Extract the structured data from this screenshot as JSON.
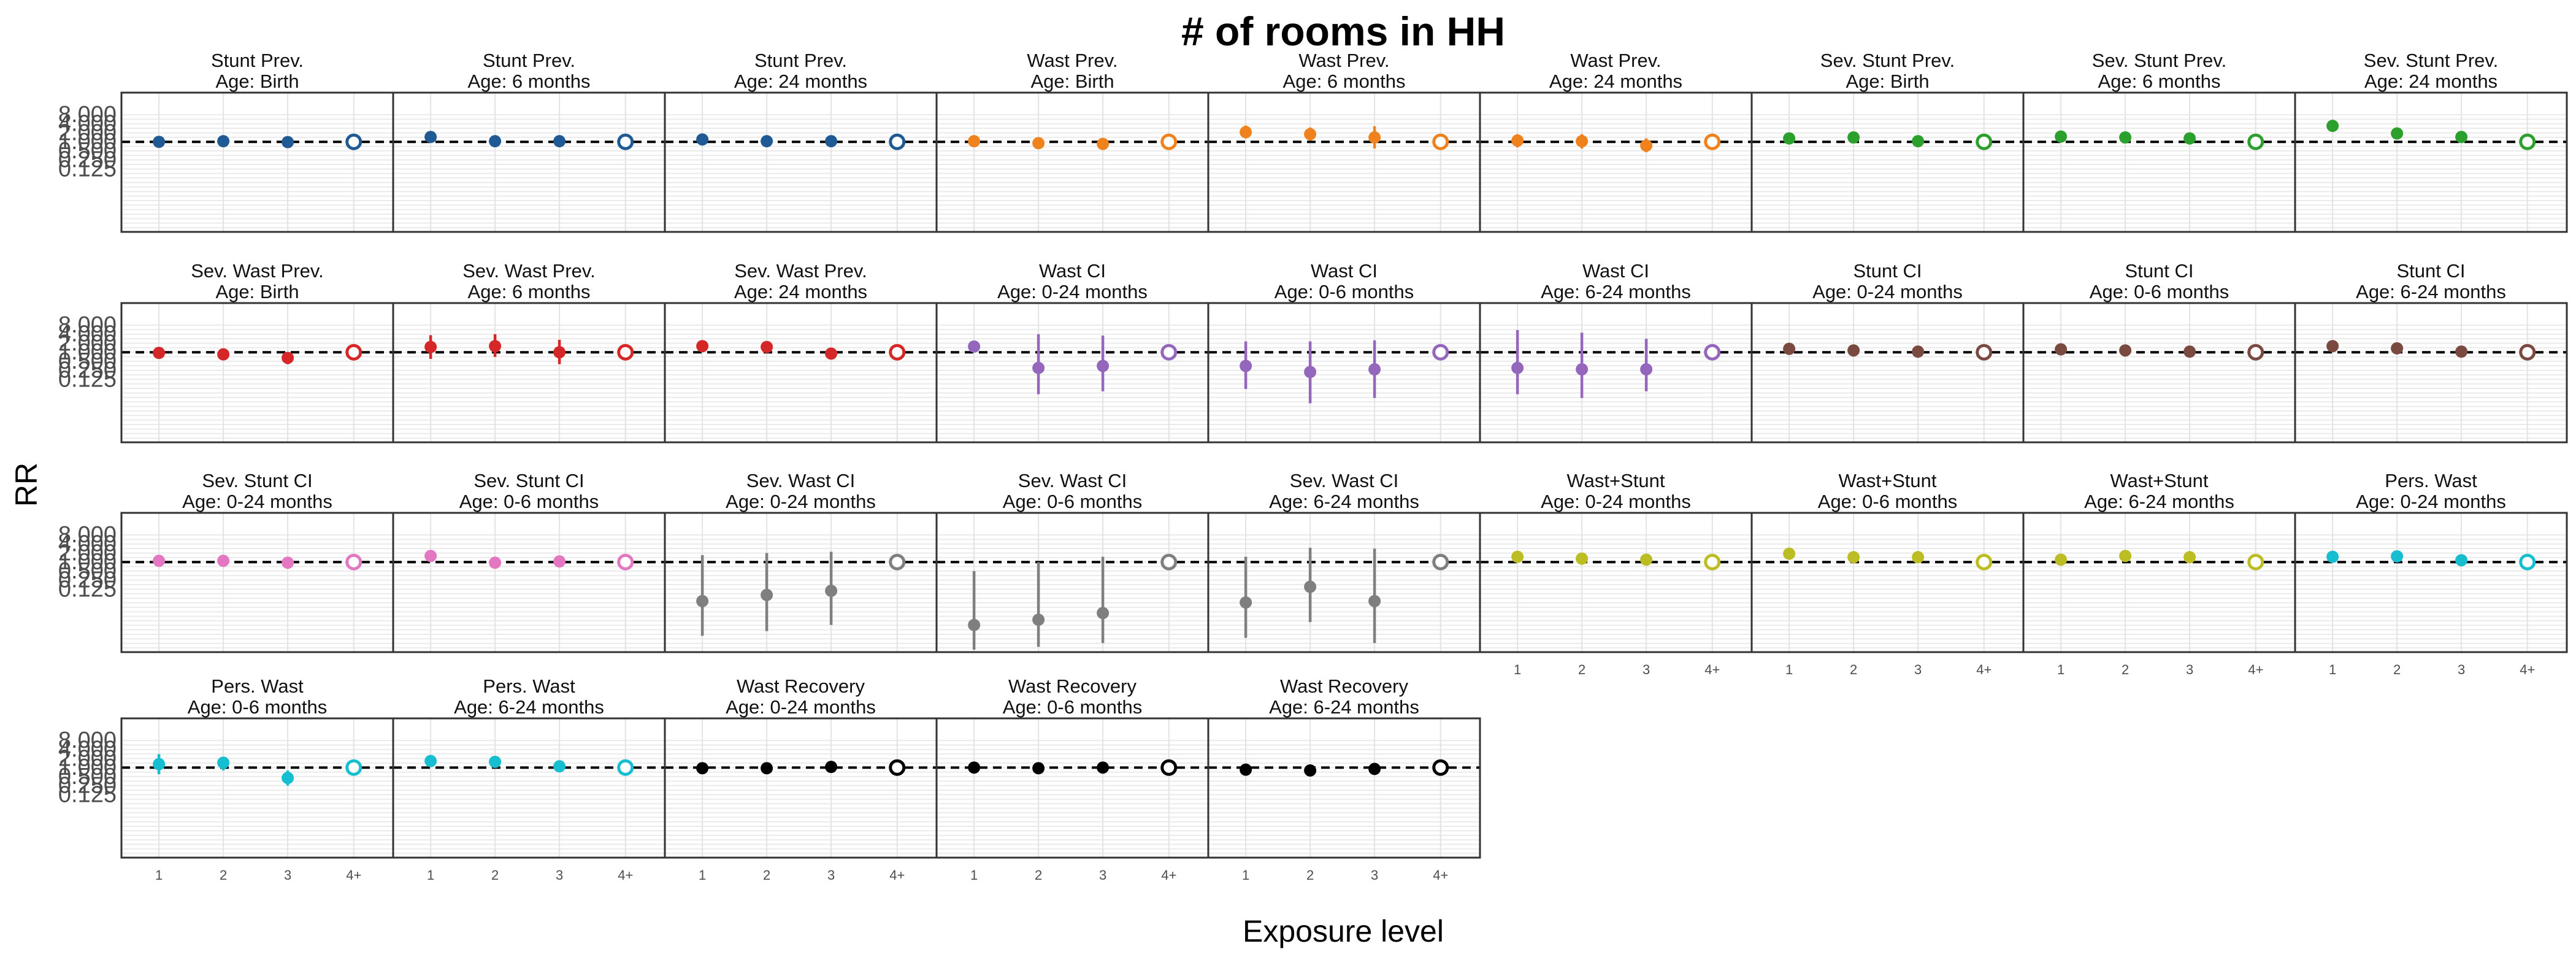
{
  "chart_data": {
    "type": "scatter",
    "title": "# of rooms in HH",
    "xlabel": "Exposure level",
    "ylabel": "RR",
    "x_categories": [
      "1",
      "2",
      "3",
      "4+"
    ],
    "y_scale": "log2",
    "y_ticks": [
      "0.125",
      "0.250",
      "0.500",
      "1.000",
      "2.000",
      "4.000",
      "8.000"
    ],
    "ylim": [
      0.001,
      8
    ],
    "reference_line": 1,
    "reference_category": "4+",
    "grid": true,
    "panels": [
      {
        "title": [
          "Stunt Prev.",
          "Age: Birth"
        ],
        "color": "#1f5a94",
        "values": [
          1.0,
          1.05,
          0.98,
          1.0
        ],
        "lower": [
          0.95,
          0.9,
          0.9,
          1.0
        ],
        "upper": [
          1.05,
          1.2,
          1.07,
          1.0
        ]
      },
      {
        "title": [
          "Stunt Prev.",
          "Age: 6 months"
        ],
        "color": "#1f5a94",
        "values": [
          1.45,
          1.05,
          1.05,
          1.0
        ],
        "lower": [
          1.2,
          0.95,
          0.95,
          1.0
        ],
        "upper": [
          1.7,
          1.15,
          1.15,
          1.0
        ]
      },
      {
        "title": [
          "Stunt Prev.",
          "Age: 24 months"
        ],
        "color": "#1f5a94",
        "values": [
          1.2,
          1.05,
          1.05,
          1.0
        ],
        "lower": [
          1.05,
          0.95,
          0.95,
          1.0
        ],
        "upper": [
          1.35,
          1.15,
          1.15,
          1.0
        ]
      },
      {
        "title": [
          "Wast Prev.",
          "Age: Birth"
        ],
        "color": "#f0821e",
        "values": [
          1.05,
          0.9,
          0.85,
          1.0
        ],
        "lower": [
          0.85,
          0.75,
          0.7,
          1.0
        ],
        "upper": [
          1.3,
          1.1,
          1.05,
          1.0
        ]
      },
      {
        "title": [
          "Wast Prev.",
          "Age: 6 months"
        ],
        "color": "#f0821e",
        "values": [
          2.1,
          1.8,
          1.4,
          1.0
        ],
        "lower": [
          1.3,
          1.1,
          0.6,
          1.0
        ],
        "upper": [
          3.5,
          3.0,
          3.3,
          1.0
        ]
      },
      {
        "title": [
          "Wast Prev.",
          "Age: 24 months"
        ],
        "color": "#f0821e",
        "values": [
          1.1,
          1.05,
          0.75,
          1.0
        ],
        "lower": [
          0.65,
          0.6,
          0.45,
          1.0
        ],
        "upper": [
          1.8,
          1.8,
          1.3,
          1.0
        ]
      },
      {
        "title": [
          "Sev. Stunt Prev.",
          "Age: Birth"
        ],
        "color": "#2ca02c",
        "values": [
          1.3,
          1.4,
          1.05,
          1.0
        ],
        "lower": [
          1.15,
          1.2,
          0.95,
          1.0
        ],
        "upper": [
          1.45,
          1.6,
          1.15,
          1.0
        ]
      },
      {
        "title": [
          "Sev. Stunt Prev.",
          "Age: 6 months"
        ],
        "color": "#2ca02c",
        "values": [
          1.5,
          1.4,
          1.3,
          1.0
        ],
        "lower": [
          1.3,
          1.2,
          1.1,
          1.0
        ],
        "upper": [
          1.7,
          1.6,
          1.5,
          1.0
        ]
      },
      {
        "title": [
          "Sev. Stunt Prev.",
          "Age: 24 months"
        ],
        "color": "#2ca02c",
        "values": [
          3.4,
          1.9,
          1.45,
          1.0
        ],
        "lower": [
          2.6,
          1.5,
          1.2,
          1.0
        ],
        "upper": [
          4.5,
          2.4,
          1.7,
          1.0
        ]
      },
      {
        "title": [
          "Sev. Wast Prev.",
          "Age: Birth"
        ],
        "color": "#d62728",
        "values": [
          0.95,
          0.85,
          0.65,
          1.0
        ],
        "lower": [
          0.7,
          0.6,
          0.4,
          1.0
        ],
        "upper": [
          1.3,
          1.2,
          1.0,
          1.0
        ]
      },
      {
        "title": [
          "Sev. Wast Prev.",
          "Age: 6 months"
        ],
        "color": "#d62728",
        "values": [
          1.5,
          1.6,
          1.0,
          1.0
        ],
        "lower": [
          0.6,
          0.7,
          0.4,
          1.0
        ],
        "upper": [
          3.7,
          4.0,
          2.6,
          1.0
        ]
      },
      {
        "title": [
          "Sev. Wast Prev.",
          "Age: 24 months"
        ],
        "color": "#d62728",
        "values": [
          1.6,
          1.5,
          0.9,
          1.0
        ],
        "lower": [
          1.1,
          1.05,
          0.6,
          1.0
        ],
        "upper": [
          2.2,
          2.1,
          1.3,
          1.0
        ]
      },
      {
        "title": [
          "Wast CI",
          "Age: 0-24 months"
        ],
        "color": "#9467bd",
        "values": [
          1.55,
          0.3,
          0.35,
          1.0
        ],
        "lower": [
          1.45,
          0.04,
          0.05,
          1.0
        ],
        "upper": [
          1.65,
          4.0,
          3.6,
          1.0
        ]
      },
      {
        "title": [
          "Wast CI",
          "Age: 0-6 months"
        ],
        "color": "#9467bd",
        "values": [
          0.35,
          0.22,
          0.27,
          1.0
        ],
        "lower": [
          0.06,
          0.02,
          0.03,
          1.0
        ],
        "upper": [
          2.3,
          2.3,
          2.5,
          1.0
        ]
      },
      {
        "title": [
          "Wast CI",
          "Age: 6-24 months"
        ],
        "color": "#9467bd",
        "values": [
          0.3,
          0.27,
          0.27,
          1.0
        ],
        "lower": [
          0.04,
          0.03,
          0.05,
          1.0
        ],
        "upper": [
          5.5,
          4.5,
          2.8,
          1.0
        ]
      },
      {
        "title": [
          "Stunt CI",
          "Age: 0-24 months"
        ],
        "color": "#7a4a40",
        "values": [
          1.3,
          1.15,
          1.05,
          1.0
        ],
        "lower": [
          1.2,
          1.05,
          0.95,
          1.0
        ],
        "upper": [
          1.4,
          1.25,
          1.15,
          1.0
        ]
      },
      {
        "title": [
          "Stunt CI",
          "Age: 0-6 months"
        ],
        "color": "#7a4a40",
        "values": [
          1.25,
          1.15,
          1.05,
          1.0
        ],
        "lower": [
          1.15,
          1.05,
          0.95,
          1.0
        ],
        "upper": [
          1.35,
          1.25,
          1.15,
          1.0
        ]
      },
      {
        "title": [
          "Stunt CI",
          "Age: 6-24 months"
        ],
        "color": "#7a4a40",
        "values": [
          1.6,
          1.35,
          1.05,
          1.0
        ],
        "lower": [
          1.4,
          1.2,
          0.95,
          1.0
        ],
        "upper": [
          1.8,
          1.5,
          1.15,
          1.0
        ]
      },
      {
        "title": [
          "Sev. Stunt CI",
          "Age: 0-24 months"
        ],
        "color": "#e377c2",
        "values": [
          1.1,
          1.1,
          0.95,
          1.0
        ],
        "lower": [
          1.0,
          1.0,
          0.85,
          1.0
        ],
        "upper": [
          1.2,
          1.2,
          1.05,
          1.0
        ]
      },
      {
        "title": [
          "Sev. Stunt CI",
          "Age: 0-6 months"
        ],
        "color": "#e377c2",
        "values": [
          1.6,
          0.95,
          1.05,
          1.0
        ],
        "lower": [
          1.4,
          0.85,
          0.95,
          1.0
        ],
        "upper": [
          1.8,
          1.05,
          1.15,
          1.0
        ]
      },
      {
        "title": [
          "Sev. Wast CI",
          "Age: 0-24 months"
        ],
        "color": "#7f7f7f",
        "values": [
          0.05,
          0.08,
          0.11,
          1.0
        ],
        "lower": [
          0.0035,
          0.005,
          0.008,
          1.0
        ],
        "upper": [
          1.7,
          2.0,
          2.2,
          1.0
        ]
      },
      {
        "title": [
          "Sev. Wast CI",
          "Age: 0-6 months"
        ],
        "color": "#7f7f7f",
        "values": [
          0.008,
          0.012,
          0.02,
          1.0
        ],
        "lower": [
          0.0012,
          0.0015,
          0.002,
          1.0
        ],
        "upper": [
          0.5,
          1.0,
          1.5,
          1.0
        ]
      },
      {
        "title": [
          "Sev. Wast CI",
          "Age: 6-24 months"
        ],
        "color": "#7f7f7f",
        "values": [
          0.045,
          0.15,
          0.05,
          1.0
        ],
        "lower": [
          0.003,
          0.01,
          0.002,
          1.0
        ],
        "upper": [
          1.5,
          3.0,
          2.8,
          1.0
        ]
      },
      {
        "title": [
          "Wast+Stunt",
          "Age: 0-24 months"
        ],
        "color": "#bcbd22",
        "values": [
          1.5,
          1.3,
          1.2,
          1.0
        ],
        "lower": [
          1.3,
          1.1,
          1.05,
          1.0
        ],
        "upper": [
          1.75,
          1.5,
          1.35,
          1.0
        ]
      },
      {
        "title": [
          "Wast+Stunt",
          "Age: 0-6 months"
        ],
        "color": "#bcbd22",
        "values": [
          1.9,
          1.45,
          1.45,
          1.0
        ],
        "lower": [
          1.6,
          1.1,
          1.2,
          1.0
        ],
        "upper": [
          2.2,
          2.3,
          1.8,
          1.0
        ]
      },
      {
        "title": [
          "Wast+Stunt",
          "Age: 6-24 months"
        ],
        "color": "#bcbd22",
        "values": [
          1.2,
          1.6,
          1.45,
          1.0
        ],
        "lower": [
          1.05,
          1.35,
          1.25,
          1.0
        ],
        "upper": [
          1.4,
          1.9,
          1.7,
          1.0
        ]
      },
      {
        "title": [
          "Pers. Wast",
          "Age: 0-24 months"
        ],
        "color": "#17becf",
        "values": [
          1.5,
          1.55,
          1.15,
          1.0
        ],
        "lower": [
          1.3,
          1.35,
          1.0,
          1.0
        ],
        "upper": [
          1.75,
          1.8,
          1.3,
          1.0
        ]
      },
      {
        "title": [
          "Pers. Wast",
          "Age: 0-6 months"
        ],
        "color": "#17becf",
        "values": [
          1.3,
          1.45,
          0.45,
          1.0
        ],
        "lower": [
          0.6,
          0.8,
          0.25,
          1.0
        ],
        "upper": [
          2.8,
          2.2,
          0.8,
          1.0
        ]
      },
      {
        "title": [
          "Pers. Wast",
          "Age: 6-24 months"
        ],
        "color": "#17becf",
        "values": [
          1.65,
          1.55,
          1.1,
          1.0
        ],
        "lower": [
          1.35,
          1.3,
          0.95,
          1.0
        ],
        "upper": [
          2.0,
          1.85,
          1.3,
          1.0
        ]
      },
      {
        "title": [
          "Wast Recovery",
          "Age: 0-24 months"
        ],
        "color": "#000000",
        "values": [
          0.95,
          0.95,
          1.05,
          1.0
        ],
        "lower": [
          0.9,
          0.9,
          1.0,
          1.0
        ],
        "upper": [
          1.0,
          1.0,
          1.1,
          1.0
        ]
      },
      {
        "title": [
          "Wast Recovery",
          "Age: 0-6 months"
        ],
        "color": "#000000",
        "values": [
          1.0,
          0.95,
          1.0,
          1.0
        ],
        "lower": [
          0.95,
          0.9,
          0.95,
          1.0
        ],
        "upper": [
          1.05,
          1.0,
          1.05,
          1.0
        ]
      },
      {
        "title": [
          "Wast Recovery",
          "Age: 6-24 months"
        ],
        "color": "#000000",
        "values": [
          0.85,
          0.8,
          0.9,
          1.0
        ],
        "lower": [
          0.75,
          0.72,
          0.82,
          1.0
        ],
        "upper": [
          0.95,
          0.88,
          0.98,
          1.0
        ]
      }
    ]
  }
}
